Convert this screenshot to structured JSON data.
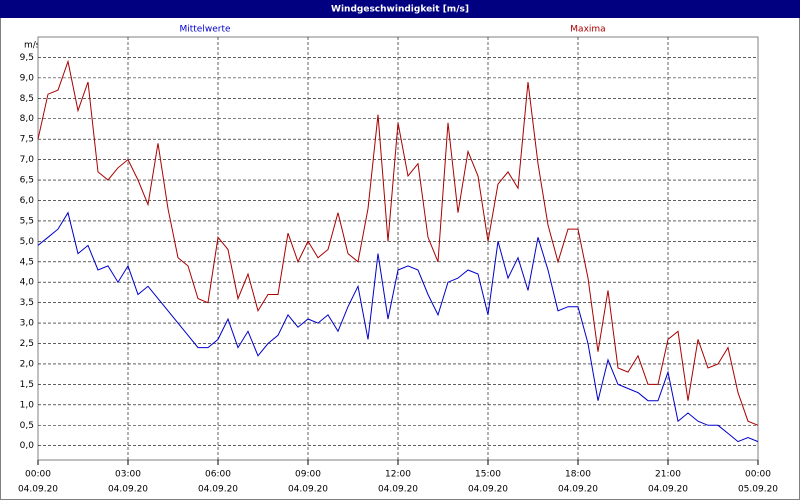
{
  "chart_data": {
    "type": "line",
    "title": "Windgeschwindigkeit [m/s]",
    "y_label": "m/s",
    "x": [
      0,
      20,
      40,
      60,
      80,
      100,
      120,
      140,
      160,
      180,
      200,
      220,
      240,
      260,
      280,
      300,
      320,
      340,
      360,
      380,
      400,
      420,
      440,
      460,
      480,
      500,
      520,
      540,
      560,
      580,
      600,
      620,
      640,
      660,
      680,
      700,
      720,
      740,
      760,
      780,
      800,
      820,
      840,
      860,
      880,
      900,
      920,
      940,
      960,
      980,
      1000,
      1020,
      1040,
      1060,
      1080,
      1100,
      1120,
      1140,
      1160,
      1180,
      1200,
      1220,
      1240,
      1260,
      1280,
      1300,
      1320,
      1340,
      1360,
      1380,
      1400,
      1420,
      1440
    ],
    "series": [
      {
        "name": "Mittelwerte",
        "color": "#0000cc",
        "values": [
          4.9,
          5.1,
          5.3,
          5.7,
          4.7,
          4.9,
          4.3,
          4.4,
          4.0,
          4.4,
          3.7,
          3.9,
          3.6,
          3.3,
          3.0,
          2.7,
          2.4,
          2.4,
          2.6,
          3.1,
          2.4,
          2.8,
          2.2,
          2.5,
          2.7,
          3.2,
          2.9,
          3.1,
          3.0,
          3.2,
          2.8,
          3.4,
          3.9,
          2.6,
          4.7,
          3.1,
          4.3,
          4.4,
          4.3,
          3.7,
          3.2,
          4.0,
          4.1,
          4.3,
          4.2,
          3.2,
          5.0,
          4.1,
          4.6,
          3.8,
          5.1,
          4.3,
          3.3,
          3.4,
          3.4,
          2.5,
          1.1,
          2.1,
          1.5,
          1.4,
          1.3,
          1.1,
          1.1,
          1.8,
          0.6,
          0.8,
          0.6,
          0.5,
          0.5,
          0.3,
          0.1,
          0.2,
          0.1
        ]
      },
      {
        "name": "Maxima",
        "color": "#aa0000",
        "values": [
          7.5,
          8.6,
          8.7,
          9.4,
          8.2,
          8.9,
          6.7,
          6.5,
          6.8,
          7.0,
          6.5,
          5.9,
          7.4,
          5.8,
          4.6,
          4.4,
          3.6,
          3.5,
          5.1,
          4.8,
          3.6,
          4.2,
          3.3,
          3.7,
          3.7,
          5.2,
          4.5,
          5.0,
          4.6,
          4.8,
          5.7,
          4.7,
          4.5,
          5.8,
          8.1,
          5.0,
          7.9,
          6.6,
          6.9,
          5.1,
          4.5,
          7.9,
          5.7,
          7.2,
          6.6,
          5.0,
          6.4,
          6.7,
          6.3,
          8.9,
          6.9,
          5.4,
          4.5,
          5.3,
          5.3,
          4.1,
          2.3,
          3.8,
          1.9,
          1.8,
          2.2,
          1.5,
          1.5,
          2.6,
          2.8,
          1.1,
          2.6,
          1.9,
          2.0,
          2.4,
          1.3,
          0.6,
          0.5
        ]
      }
    ],
    "xlim": [
      0,
      1440
    ],
    "xticks": [
      {
        "value": 0,
        "label": "00:00",
        "date": "04.09.20"
      },
      {
        "value": 180,
        "label": "03:00",
        "date": "04.09.20"
      },
      {
        "value": 360,
        "label": "06:00",
        "date": "04.09.20"
      },
      {
        "value": 540,
        "label": "09:00",
        "date": "04.09.20"
      },
      {
        "value": 720,
        "label": "12:00",
        "date": "04.09.20"
      },
      {
        "value": 900,
        "label": "15:00",
        "date": "04.09.20"
      },
      {
        "value": 1080,
        "label": "18:00",
        "date": "04.09.20"
      },
      {
        "value": 1260,
        "label": "21:00",
        "date": "04.09.20"
      },
      {
        "value": 1440,
        "label": "00:00",
        "date": "05.09.20"
      }
    ],
    "ylim": [
      -0.35,
      10
    ],
    "yticks": [
      {
        "value": 0,
        "label": "0,0"
      },
      {
        "value": 0.5,
        "label": "0,5"
      },
      {
        "value": 1,
        "label": "1,0"
      },
      {
        "value": 1.5,
        "label": "1,5"
      },
      {
        "value": 2,
        "label": "2,0"
      },
      {
        "value": 2.5,
        "label": "2,5"
      },
      {
        "value": 3,
        "label": "3,0"
      },
      {
        "value": 3.5,
        "label": "3,5"
      },
      {
        "value": 4,
        "label": "4,0"
      },
      {
        "value": 4.5,
        "label": "4,5"
      },
      {
        "value": 5,
        "label": "5,0"
      },
      {
        "value": 5.5,
        "label": "5,5"
      },
      {
        "value": 6,
        "label": "6,0"
      },
      {
        "value": 6.5,
        "label": "6,5"
      },
      {
        "value": 7,
        "label": "7,0"
      },
      {
        "value": 7.5,
        "label": "7,5"
      },
      {
        "value": 8,
        "label": "8,0"
      },
      {
        "value": 8.5,
        "label": "8,5"
      },
      {
        "value": 9,
        "label": "9,0"
      },
      {
        "value": 9.5,
        "label": "9,5"
      }
    ],
    "grid": true
  }
}
